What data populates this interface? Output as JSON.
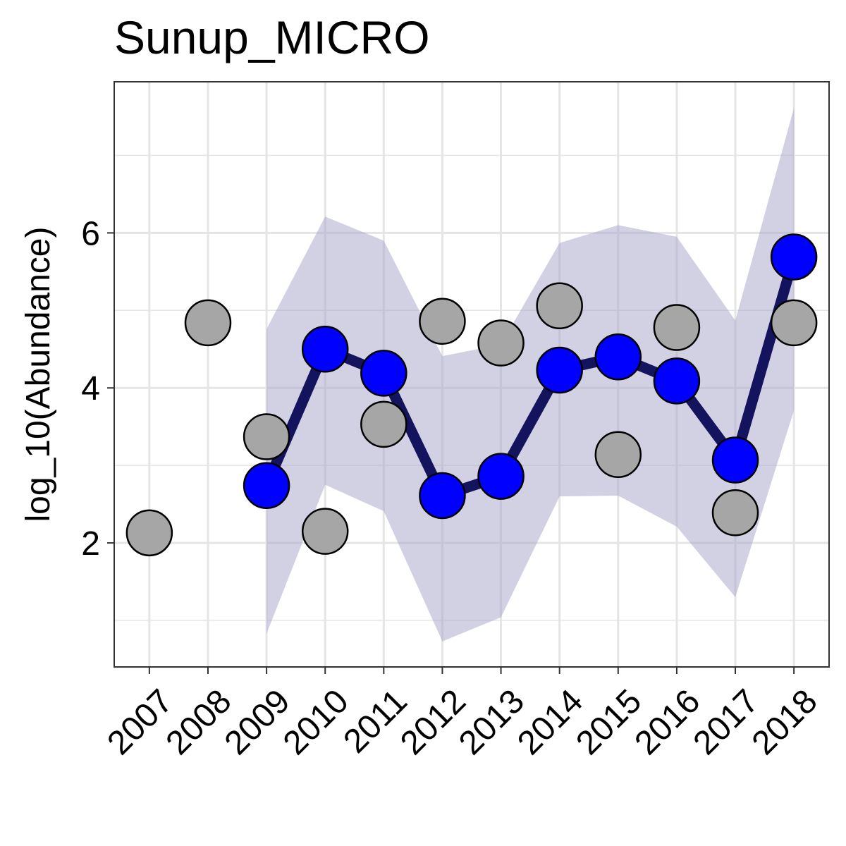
{
  "chart_data": {
    "type": "line",
    "title": "Sunup_MICRO",
    "xlabel": "",
    "ylabel": "log_10(Abundance)",
    "x": [
      "2007",
      "2008",
      "2009",
      "2010",
      "2011",
      "2012",
      "2013",
      "2014",
      "2015",
      "2016",
      "2017",
      "2018"
    ],
    "xlim": [
      2006.4,
      2018.6
    ],
    "ylim": [
      0.4,
      7.95
    ],
    "y_ticks": [
      2,
      4,
      6
    ],
    "y_tick_labels": [
      "2",
      "4",
      "6"
    ],
    "grid": true,
    "legend": "none",
    "series": [
      {
        "type": "observed_points",
        "color": "#a6a6a6",
        "points": [
          {
            "x": 2007,
            "y": 2.13
          },
          {
            "x": 2008,
            "y": 4.84
          },
          {
            "x": 2009,
            "y": 3.37
          },
          {
            "x": 2010,
            "y": 2.15
          },
          {
            "x": 2011,
            "y": 3.53
          },
          {
            "x": 2012,
            "y": 4.86
          },
          {
            "x": 2013,
            "y": 4.58
          },
          {
            "x": 2014,
            "y": 5.06
          },
          {
            "x": 2015,
            "y": 3.14
          },
          {
            "x": 2016,
            "y": 4.78
          },
          {
            "x": 2017,
            "y": 2.39
          },
          {
            "x": 2018,
            "y": 4.84
          }
        ]
      },
      {
        "type": "estimate_line_points",
        "color": "#0000ff",
        "line_color": "#14145e",
        "points": [
          {
            "x": 2009,
            "y": 2.74
          },
          {
            "x": 2010,
            "y": 4.5
          },
          {
            "x": 2011,
            "y": 4.19
          },
          {
            "x": 2012,
            "y": 2.61
          },
          {
            "x": 2013,
            "y": 2.86
          },
          {
            "x": 2014,
            "y": 4.23
          },
          {
            "x": 2015,
            "y": 4.4
          },
          {
            "x": 2016,
            "y": 4.09
          },
          {
            "x": 2017,
            "y": 3.07
          },
          {
            "x": 2018,
            "y": 5.69
          }
        ]
      },
      {
        "type": "ribbon",
        "color": "#a3a3c7",
        "points": [
          {
            "x": 2009,
            "lower": 0.83,
            "upper": 4.76
          },
          {
            "x": 2010,
            "lower": 2.75,
            "upper": 6.21
          },
          {
            "x": 2011,
            "lower": 2.41,
            "upper": 5.9
          },
          {
            "x": 2012,
            "lower": 0.73,
            "upper": 4.41
          },
          {
            "x": 2013,
            "lower": 1.04,
            "upper": 4.56
          },
          {
            "x": 2014,
            "lower": 2.6,
            "upper": 5.87
          },
          {
            "x": 2015,
            "lower": 2.61,
            "upper": 6.1
          },
          {
            "x": 2016,
            "lower": 2.21,
            "upper": 5.95
          },
          {
            "x": 2017,
            "lower": 1.3,
            "upper": 4.87
          },
          {
            "x": 2018,
            "lower": 3.71,
            "upper": 7.61
          }
        ]
      }
    ],
    "colors": {
      "panel_border": "#333333",
      "grid": "#e5e5e5",
      "point_stroke": "#000000"
    }
  }
}
